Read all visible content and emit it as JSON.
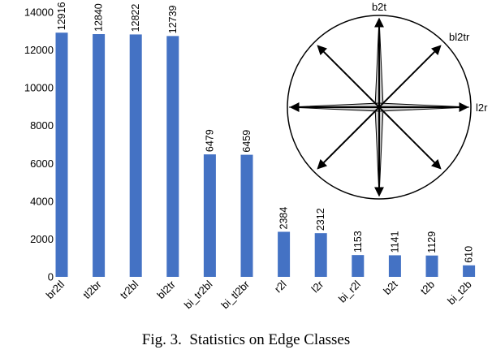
{
  "caption": "Fig. 3.  Statistics on Edge Classes",
  "chart_data": {
    "type": "bar",
    "categories": [
      "br2tl",
      "tl2br",
      "tr2bl",
      "bl2tr",
      "bi_tr2bl",
      "bi_tl2br",
      "r2l",
      "l2r",
      "bi_r2l",
      "b2t",
      "t2b",
      "bi_t2b"
    ],
    "values": [
      12916,
      12840,
      12822,
      12739,
      6479,
      6459,
      2384,
      2312,
      1153,
      1141,
      1129,
      610
    ],
    "ylim": [
      0,
      14000
    ],
    "yticks": [
      0,
      2000,
      4000,
      6000,
      8000,
      10000,
      12000,
      14000
    ],
    "bar_color": "#4472C4",
    "grid": false,
    "legend": "none"
  },
  "inset": {
    "labels": {
      "top": "b2t",
      "top_right": "bl2tr",
      "right": "l2r"
    }
  }
}
